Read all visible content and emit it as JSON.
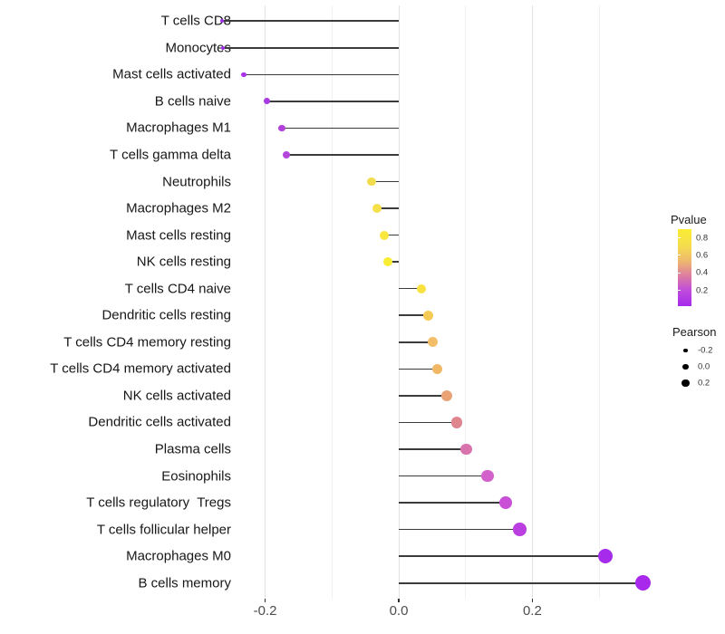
{
  "chart_data": {
    "type": "scatter",
    "style": "lollipop-horizontal",
    "title": "",
    "xlabel": "",
    "ylabel": "",
    "xlim": [
      -0.2965,
      0.3965
    ],
    "grid": "vertical major and minor, no horizontal",
    "x_axis": {
      "major_ticks": [
        {
          "label": "-0.2",
          "value": -0.2
        },
        {
          "label": "0.0",
          "value": 0.0
        },
        {
          "label": "0.2",
          "value": 0.2
        }
      ],
      "minor_gridlines": [
        -0.1,
        0.1,
        0.3
      ]
    },
    "series_name": "Pearson correlation vs cell type (color = Pvalue, size = Pearson)",
    "points": [
      {
        "label": "T cells CD8",
        "pearson": -0.265,
        "color": "#A12DE8",
        "r": 2.0
      },
      {
        "label": "Monocytes",
        "pearson": -0.263,
        "color": "#A12DE8",
        "r": 2.1
      },
      {
        "label": "Mast cells activated",
        "pearson": -0.232,
        "color": "#A834E6",
        "r": 2.8
      },
      {
        "label": "B cells naive",
        "pearson": -0.198,
        "color": "#A93BE2",
        "r": 3.5
      },
      {
        "label": "Macrophages M1",
        "pearson": -0.175,
        "color": "#B342DC",
        "r": 3.8
      },
      {
        "label": "T cells gamma delta",
        "pearson": -0.168,
        "color": "#B346DB",
        "r": 4.0
      },
      {
        "label": "Neutrophils",
        "pearson": -0.041,
        "color": "#F2DC4E",
        "r": 4.8
      },
      {
        "label": "Macrophages M2",
        "pearson": -0.033,
        "color": "#F5E04A",
        "r": 5.0
      },
      {
        "label": "Mast cells resting",
        "pearson": -0.022,
        "color": "#F8E73E",
        "r": 5.0
      },
      {
        "label": "NK cells resting",
        "pearson": -0.016,
        "color": "#F9EC35",
        "r": 5.2
      },
      {
        "label": "T cells CD4 naive",
        "pearson": 0.034,
        "color": "#F8E23F",
        "r": 5.0
      },
      {
        "label": "Dendritic cells resting",
        "pearson": 0.044,
        "color": "#F5CB55",
        "r": 5.5
      },
      {
        "label": "T cells CD4 memory resting",
        "pearson": 0.051,
        "color": "#F2BF68",
        "r": 5.5
      },
      {
        "label": "T cells CD4 memory activated",
        "pearson": 0.058,
        "color": "#F0B865",
        "r": 5.6
      },
      {
        "label": "NK cells activated",
        "pearson": 0.072,
        "color": "#E8A273",
        "r": 6.0
      },
      {
        "label": "Dendritic cells activated",
        "pearson": 0.087,
        "color": "#DF8590",
        "r": 6.2
      },
      {
        "label": "Plasma cells",
        "pearson": 0.101,
        "color": "#D873AE",
        "r": 6.3
      },
      {
        "label": "Eosinophils",
        "pearson": 0.133,
        "color": "#D261CC",
        "r": 6.8
      },
      {
        "label": "T cells regulatory  Tregs",
        "pearson": 0.16,
        "color": "#C94FD6",
        "r": 7.0
      },
      {
        "label": "T cells follicular helper",
        "pearson": 0.181,
        "color": "#BB3FE0",
        "r": 7.3
      },
      {
        "label": "Macrophages M0",
        "pearson": 0.309,
        "color": "#A62BEB",
        "r": 8.0
      },
      {
        "label": "B cells memory",
        "pearson": 0.365,
        "color": "#A828EC",
        "r": 8.5
      }
    ],
    "legend_position": "right",
    "legends": {
      "pvalue": {
        "title": "Pvalue",
        "tick_labels": [
          "0.8",
          "0.6",
          "0.4",
          "0.2"
        ],
        "tick_values": [
          0.8,
          0.6,
          0.4,
          0.2
        ],
        "bar_domain": [
          0.02,
          0.9
        ],
        "gradient_top_color": "#FAEC33",
        "gradient_bottom_color": "#A52BEB",
        "gradient_stops": [
          "#FAEC33",
          "#F5DF4B",
          "#F0BC6C",
          "#DD7F9F",
          "#C04BDC",
          "#A52BEB"
        ]
      },
      "pearson": {
        "title": "Pearson",
        "entries": [
          {
            "label": "-0.2",
            "value": -0.2,
            "r": 2.3
          },
          {
            "label": "0.0",
            "value": 0.0,
            "r": 3.3
          },
          {
            "label": "0.2",
            "value": 0.2,
            "r": 4.3
          }
        ]
      }
    },
    "colors": {
      "stem": "#3b3b3b",
      "grid_major": "#e2e2e2",
      "grid_minor": "#f0f0f0",
      "axis_text": "#4d4d4d",
      "category_text": "#171717",
      "background": "#ffffff"
    }
  }
}
